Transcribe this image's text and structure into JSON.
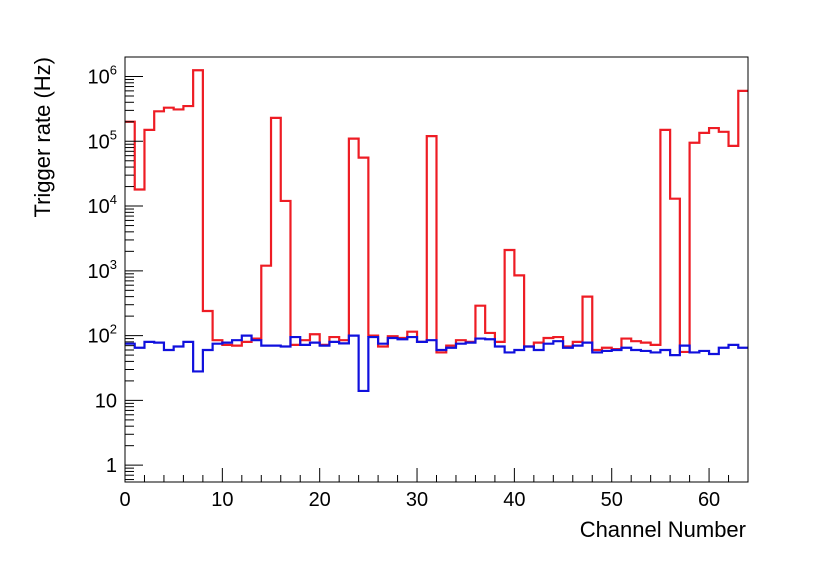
{
  "chart_data": {
    "type": "line",
    "style": "step-histogram",
    "title": "",
    "xlabel": "Channel Number",
    "ylabel": "Trigger rate (Hz)",
    "xlim": [
      0,
      64
    ],
    "ylim": [
      0.55,
      2000000
    ],
    "yscale": "log",
    "grid": false,
    "x_ticks": [
      "0",
      "10",
      "20",
      "30",
      "40",
      "50",
      "60"
    ],
    "y_ticks": [
      {
        "value": 1,
        "base": "1",
        "exp": ""
      },
      {
        "value": 10,
        "base": "10",
        "exp": ""
      },
      {
        "value": 100,
        "base": "10",
        "exp": "2"
      },
      {
        "value": 1000,
        "base": "10",
        "exp": "3"
      },
      {
        "value": 10000,
        "base": "10",
        "exp": "4"
      },
      {
        "value": 100000,
        "base": "10",
        "exp": "5"
      },
      {
        "value": 1000000,
        "base": "10",
        "exp": "6"
      }
    ],
    "series": [
      {
        "color": "#ee1c24",
        "values": [
          200000,
          18000,
          150000,
          290000,
          330000,
          310000,
          350000,
          1250000,
          240,
          85,
          72,
          70,
          80,
          90,
          1200,
          230000,
          12000,
          72,
          85,
          105,
          72,
          95,
          85,
          110000,
          56000,
          100,
          68,
          98,
          92,
          115,
          80,
          120000,
          55,
          70,
          85,
          80,
          290,
          110,
          80,
          2100,
          850,
          68,
          78,
          92,
          95,
          68,
          80,
          400,
          60,
          65,
          62,
          90,
          82,
          78,
          72,
          150000,
          13000,
          56,
          95000,
          135000,
          160000,
          140000,
          85000,
          600000
        ]
      },
      {
        "color": "#1010dd",
        "values": [
          75,
          65,
          80,
          78,
          60,
          68,
          80,
          28,
          60,
          75,
          78,
          85,
          100,
          85,
          70,
          70,
          68,
          95,
          72,
          78,
          70,
          80,
          76,
          100,
          14,
          95,
          75,
          92,
          88,
          95,
          80,
          85,
          60,
          65,
          75,
          78,
          90,
          88,
          68,
          55,
          60,
          68,
          60,
          75,
          82,
          65,
          70,
          78,
          55,
          58,
          60,
          65,
          60,
          58,
          55,
          60,
          50,
          70,
          55,
          58,
          52,
          65,
          72,
          65
        ]
      }
    ]
  }
}
